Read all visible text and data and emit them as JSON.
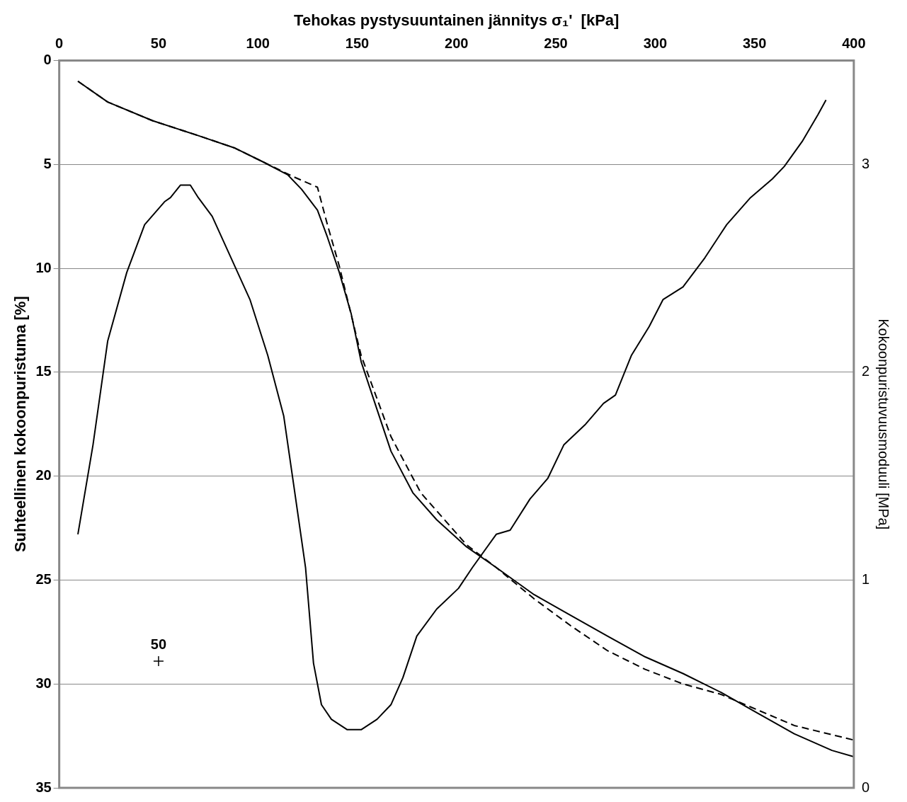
{
  "chart_data": {
    "type": "line",
    "xlabel": "Tehokas pystysuuntainen jännitys σ₁'  [kPa]",
    "ylabel": "Suhteellinen kokoonpuristuma [%]",
    "y2label": "Kokoonpuristuvuusmoduuli [MPa]",
    "xlim": [
      0,
      400
    ],
    "xticks": [
      0,
      50,
      100,
      150,
      200,
      250,
      300,
      350,
      400
    ],
    "ylim": [
      35,
      0
    ],
    "yticks": [
      0,
      5,
      10,
      15,
      20,
      25,
      30,
      35
    ],
    "y2lim": [
      0,
      3.5
    ],
    "y2ticks": [
      0,
      1,
      2,
      3
    ],
    "grid": "y",
    "legend": false,
    "marker": "none",
    "series": [
      {
        "type": "line",
        "color": "#000000",
        "line_style": "solid",
        "x": [
          9.4,
          24.4,
          47,
          69.5,
          88,
          103,
          115,
          122,
          130,
          135,
          141,
          147,
          152,
          160,
          167,
          178,
          190,
          205,
          220,
          239,
          257.5,
          276,
          295,
          314,
          333,
          351.5,
          370,
          389,
          400
        ],
        "values": [
          1.0,
          2.0,
          2.9,
          3.6,
          4.2,
          4.9,
          5.5,
          6.2,
          7.2,
          8.5,
          10.2,
          12.2,
          14.5,
          16.8,
          18.8,
          20.8,
          22.1,
          23.4,
          24.4,
          25.7,
          26.7,
          27.7,
          28.7,
          29.5,
          30.4,
          31.4,
          32.4,
          33.2,
          33.5
        ]
      },
      {
        "type": "line",
        "color": "#000000",
        "line_style": "dashed",
        "x": [
          9.4,
          24.4,
          47,
          69.5,
          88,
          103,
          118,
          130,
          135,
          141,
          152,
          167,
          182,
          205,
          220,
          239,
          257.5,
          276,
          295,
          314,
          333,
          370,
          400
        ],
        "values": [
          1.0,
          2.0,
          2.9,
          3.6,
          4.2,
          4.9,
          5.6,
          6.1,
          7.9,
          9.9,
          14.2,
          18.1,
          20.8,
          23.3,
          24.4,
          25.9,
          27.2,
          28.4,
          29.3,
          30.0,
          30.5,
          32.0,
          32.7
        ]
      },
      {
        "type": "line",
        "axis": "y2",
        "color": "#000000",
        "line_style": "solid",
        "x": [
          9.4,
          17,
          24.4,
          34,
          43,
          53,
          56,
          61,
          66,
          70,
          77,
          86.5,
          96,
          105,
          113,
          118,
          124,
          128,
          132,
          137,
          145,
          152,
          160,
          167,
          173,
          180,
          190,
          201,
          208,
          220,
          227,
          237,
          246,
          254,
          265,
          274,
          280,
          288,
          297,
          304,
          314,
          325,
          336,
          348,
          359,
          365,
          374,
          382,
          386
        ],
        "values": [
          1.22,
          1.65,
          2.15,
          2.48,
          2.71,
          2.82,
          2.84,
          2.9,
          2.9,
          2.84,
          2.75,
          2.55,
          2.35,
          2.08,
          1.79,
          1.46,
          1.06,
          0.6,
          0.4,
          0.33,
          0.28,
          0.28,
          0.33,
          0.4,
          0.53,
          0.73,
          0.86,
          0.96,
          1.06,
          1.22,
          1.24,
          1.39,
          1.49,
          1.65,
          1.75,
          1.85,
          1.89,
          2.08,
          2.22,
          2.35,
          2.41,
          2.55,
          2.71,
          2.84,
          2.93,
          2.99,
          3.11,
          3.24,
          3.31
        ]
      },
      {
        "type": "scatter",
        "color": "#000000",
        "marker": "cross",
        "x": [
          50
        ],
        "values": [
          28.9
        ]
      }
    ],
    "annotations": [
      {
        "text": "50",
        "x": 50,
        "y": 28.9
      }
    ]
  }
}
